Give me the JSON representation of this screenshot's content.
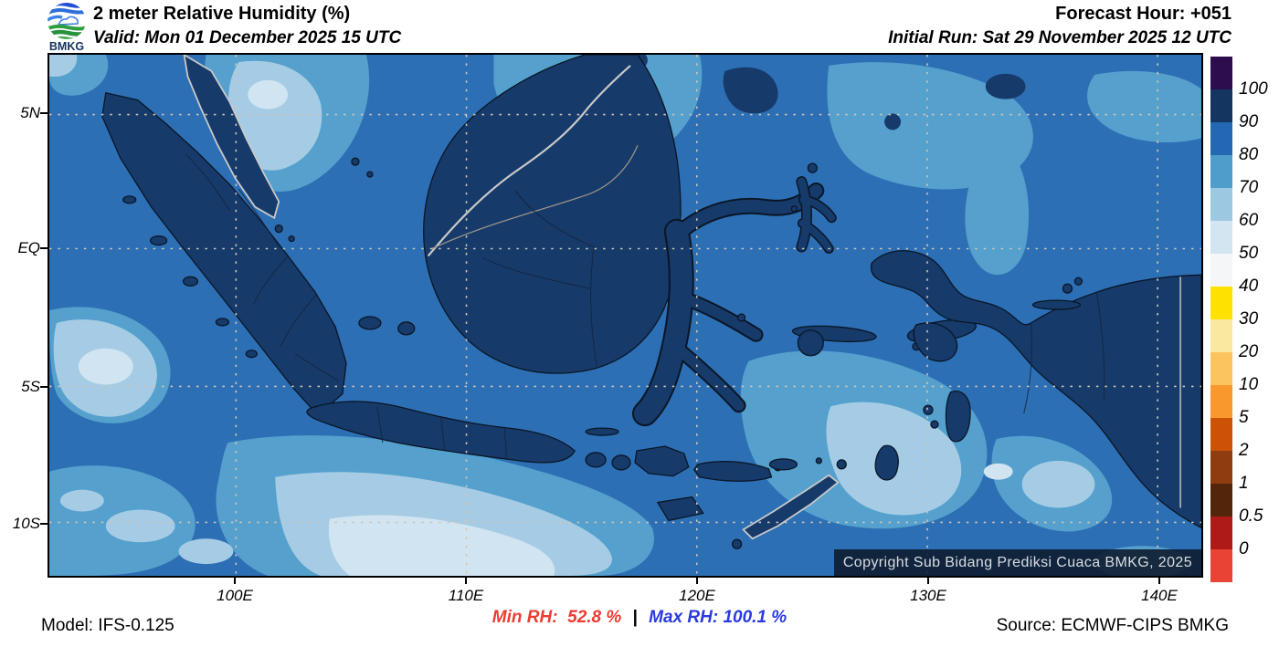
{
  "header": {
    "logo_text": "BMKG",
    "title": "2 meter Relative Humidity (%)",
    "valid": "Valid: Mon 01 December 2025 15 UTC",
    "forecast_hour": "Forecast Hour: +051",
    "initial_run": "Initial Run: Sat 29 November 2025 12 UTC"
  },
  "map": {
    "x_ticks": [
      "100E",
      "110E",
      "120E",
      "130E",
      "140E"
    ],
    "y_ticks": [
      "5N",
      "EQ",
      "5S",
      "10S"
    ],
    "copyright": "Copyright Sub Bidang Prediksi Cuaca BMKG, 2025"
  },
  "colorbar": {
    "labels": [
      "100",
      "90",
      "80",
      "70",
      "60",
      "50",
      "40",
      "30",
      "20",
      "10",
      "5",
      "2",
      "1",
      "0.5",
      "0"
    ],
    "colors": [
      "#2e0d4f",
      "#14355f",
      "#2268b2",
      "#4f9dca",
      "#9cc8e2",
      "#d2e5f1",
      "#f5f6f7",
      "#ffe100",
      "#fbe8a0",
      "#fcc45e",
      "#f8982d",
      "#cc5206",
      "#8f3c10",
      "#53250a",
      "#ad1a17",
      "#e84335"
    ]
  },
  "footer": {
    "model": "Model: IFS-0.125",
    "min_label": "Min RH:",
    "min_value": "52.8 %",
    "separator": "|",
    "max_label": "Max RH:",
    "max_value": "100.1 %",
    "source": "Source: ECMWF-CIPS BMKG",
    "min_color": "#ee3b32",
    "max_color": "#2a3adf"
  },
  "palette": {
    "ocean": "#2d6fb4",
    "land": "#163a6a",
    "rh70": "#55a0cd",
    "rh60": "#a5cce4",
    "rh50": "#d0e4f1",
    "coast": "#0a1626",
    "coast-foreign": "#c9c9c9",
    "grid": "#cfc5b8"
  }
}
